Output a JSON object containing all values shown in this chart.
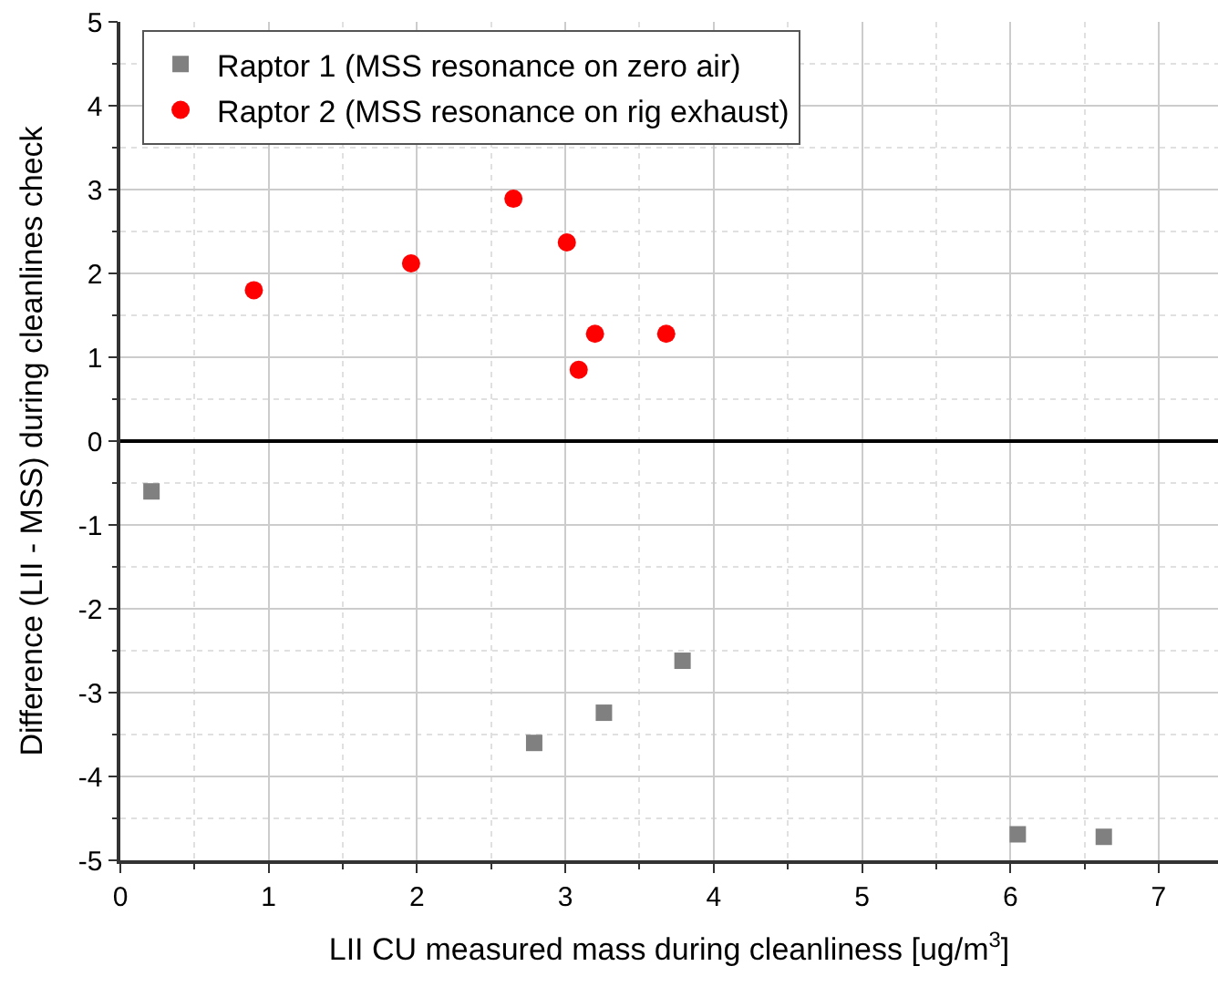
{
  "chart_data": {
    "type": "scatter",
    "xlabel": "LII CU measured mass during cleanliness [ug/m$^{3}$]",
    "ylabel": "Difference (LII - MSS) during cleanlines check",
    "xlim": [
      0,
      7.4
    ],
    "xticks": [
      0,
      1,
      2,
      3,
      4,
      5,
      6,
      7
    ],
    "ylim": [
      -5,
      5
    ],
    "yticks": [
      -5,
      -4,
      -3,
      -2,
      -1,
      0,
      1,
      2,
      3,
      4,
      5
    ],
    "grid": true,
    "legend": "top left",
    "ref_lines": [
      {
        "axis": "y",
        "value": 0,
        "color": "#000000"
      }
    ],
    "series": [
      {
        "name": "Raptor 1 (MSS resonance on zero air)",
        "color": "#808080",
        "marker": "square",
        "x": [
          0.21,
          2.79,
          3.26,
          3.79,
          6.05,
          6.63
        ],
        "values": [
          -0.6,
          -3.6,
          -3.24,
          -2.62,
          -4.69,
          -4.72
        ]
      },
      {
        "name": "Raptor 2 (MSS resonance on rig exhaust)",
        "color": "#ff0000",
        "marker": "circle",
        "x": [
          0.9,
          1.96,
          2.65,
          3.01,
          3.09,
          3.2,
          3.68
        ],
        "values": [
          1.8,
          2.12,
          2.89,
          2.37,
          0.85,
          1.28,
          1.28
        ]
      }
    ]
  }
}
